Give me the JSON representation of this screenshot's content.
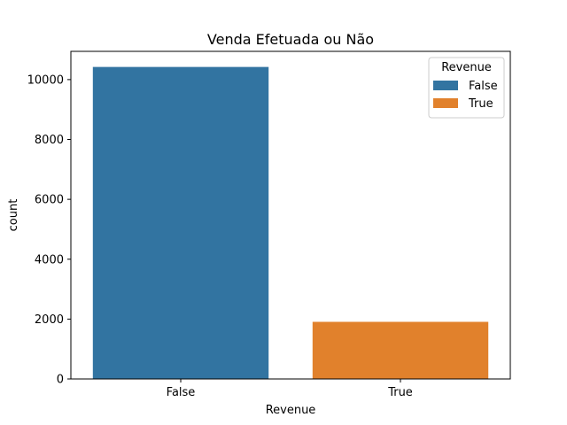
{
  "chart_data": {
    "type": "bar",
    "title": "Venda Efetuada ou Não",
    "xlabel": "Revenue",
    "ylabel": "count",
    "categories": [
      "False",
      "True"
    ],
    "values": [
      10422,
      1908
    ],
    "colors": [
      "#3274a1",
      "#e1812c"
    ],
    "ylim": [
      0,
      10943
    ],
    "yticks": [
      0,
      2000,
      4000,
      6000,
      8000,
      10000
    ],
    "grid": false,
    "legend": {
      "title": "Revenue",
      "placement": "top-right",
      "entries": [
        {
          "label": "False",
          "color": "#3274a1"
        },
        {
          "label": "True",
          "color": "#e1812c"
        }
      ]
    }
  }
}
